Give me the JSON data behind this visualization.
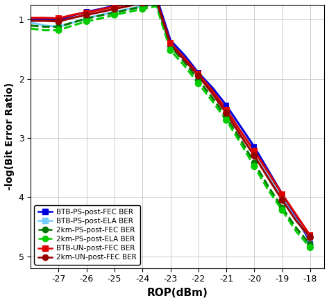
{
  "xlabel": "ROP(dBm)",
  "ylabel": "-log(Bit Error Ratio)",
  "xlim": [
    -28,
    -17.5
  ],
  "ylim": [
    0.75,
    5.2
  ],
  "yticks": [
    1,
    2,
    3,
    4,
    5
  ],
  "xticks": [
    -27,
    -26,
    -25,
    -24,
    -23,
    -22,
    -21,
    -20,
    -19,
    -18
  ],
  "background_color": "#ffffff",
  "grid_color": "#cccccc",
  "curves": {
    "BTB_PS_FEC": {
      "color": "#0000dd",
      "linewidth": 2.2,
      "linestyle": "-",
      "x": [
        -28,
        -27.5,
        -27,
        -26.5,
        -26,
        -25.5,
        -25,
        -24.5,
        -24,
        -23.5,
        -23,
        -22.5,
        -22,
        -21.5,
        -21,
        -20.5,
        -20,
        -19.5,
        -19,
        -18.5,
        -18
      ],
      "y": [
        1.0,
        1.0,
        1.0,
        0.93,
        0.87,
        0.82,
        0.77,
        0.72,
        0.67,
        0.62,
        1.35,
        1.6,
        1.9,
        2.15,
        2.45,
        2.8,
        3.15,
        3.55,
        3.95,
        4.35,
        4.75
      ]
    },
    "BTB_PS_ELA": {
      "color": "#77ccff",
      "linewidth": 2.2,
      "linestyle": "-",
      "x": [
        -28,
        -27.5,
        -27,
        -26.5,
        -26,
        -25.5,
        -25,
        -24.5,
        -24,
        -23.5,
        -23,
        -22.5,
        -22,
        -21.5,
        -21,
        -20.5,
        -20,
        -19.5,
        -19,
        -18.5,
        -18
      ],
      "y": [
        1.05,
        1.1,
        1.12,
        1.05,
        0.98,
        0.92,
        0.87,
        0.82,
        0.77,
        0.73,
        1.45,
        1.68,
        1.95,
        2.22,
        2.52,
        2.88,
        3.22,
        3.62,
        4.02,
        4.38,
        4.7
      ]
    },
    "2km_PS_FEC_line": {
      "color": "#007700",
      "linewidth": 2.2,
      "linestyle": "--",
      "x": [
        -28,
        -27.5,
        -27,
        -26.5,
        -26,
        -25.5,
        -25,
        -24.5,
        -24,
        -23.5,
        -23,
        -22.5,
        -22,
        -21.5,
        -21,
        -20.5,
        -20,
        -19.5,
        -19,
        -18.5,
        -18
      ],
      "y": [
        1.1,
        1.12,
        1.12,
        1.05,
        0.98,
        0.93,
        0.88,
        0.83,
        0.78,
        0.73,
        1.45,
        1.72,
        2.02,
        2.32,
        2.65,
        3.02,
        3.42,
        3.82,
        4.18,
        4.52,
        4.8
      ]
    },
    "2km_PS_ELA_line": {
      "color": "#00cc00",
      "linewidth": 2.2,
      "linestyle": "--",
      "x": [
        -28,
        -27.5,
        -27,
        -26.5,
        -26,
        -25.5,
        -25,
        -24.5,
        -24,
        -23.5,
        -23,
        -22.5,
        -22,
        -21.5,
        -21,
        -20.5,
        -20,
        -19.5,
        -19,
        -18.5,
        -18
      ],
      "y": [
        1.15,
        1.18,
        1.18,
        1.1,
        1.03,
        0.98,
        0.92,
        0.87,
        0.82,
        0.77,
        1.52,
        1.78,
        2.08,
        2.38,
        2.7,
        3.08,
        3.48,
        3.88,
        4.22,
        4.58,
        4.85
      ]
    },
    "BTB_UN_FEC": {
      "color": "#dd0000",
      "linewidth": 2.2,
      "linestyle": "-",
      "x": [
        -28,
        -27.5,
        -27,
        -26.5,
        -26,
        -25.5,
        -25,
        -24.5,
        -24,
        -23.5,
        -23,
        -22.5,
        -22,
        -21.5,
        -21,
        -20.5,
        -20,
        -19.5,
        -19,
        -18.5,
        -18
      ],
      "y": [
        0.97,
        0.97,
        0.98,
        0.92,
        0.88,
        0.83,
        0.78,
        0.73,
        0.7,
        0.67,
        1.4,
        1.65,
        1.92,
        2.2,
        2.52,
        2.88,
        3.22,
        3.58,
        3.95,
        4.3,
        4.65
      ]
    },
    "2km_UN_FEC_line": {
      "color": "#990000",
      "linewidth": 2.2,
      "linestyle": "-",
      "x": [
        -28,
        -27.5,
        -27,
        -26.5,
        -26,
        -25.5,
        -25,
        -24.5,
        -24,
        -23.5,
        -23,
        -22.5,
        -22,
        -21.5,
        -21,
        -20.5,
        -20,
        -19.5,
        -19,
        -18.5,
        -18
      ],
      "y": [
        1.02,
        1.02,
        1.03,
        0.97,
        0.92,
        0.87,
        0.82,
        0.77,
        0.72,
        0.68,
        1.42,
        1.68,
        1.95,
        2.25,
        2.58,
        2.95,
        3.3,
        3.68,
        4.05,
        4.4,
        4.68
      ]
    }
  },
  "scatter": {
    "BTB_PS_FEC_pts": {
      "color": "#0000dd",
      "marker": "s",
      "size": 35,
      "x": [
        -27,
        -26,
        -25,
        -24,
        -22,
        -21,
        -20,
        -19,
        -18
      ],
      "y": [
        1.0,
        0.87,
        0.77,
        0.67,
        1.9,
        2.45,
        3.15,
        3.95,
        4.75
      ]
    },
    "BTB_PS_ELA_pts": {
      "color": "#77ccff",
      "marker": "s",
      "size": 35,
      "x": [
        -27,
        -26,
        -25,
        -24,
        -22,
        -21,
        -20,
        -19,
        -18
      ],
      "y": [
        1.12,
        0.98,
        0.87,
        0.77,
        1.95,
        2.52,
        3.22,
        4.02,
        4.7
      ]
    },
    "2km_PS_FEC_pts": {
      "color": "#007700",
      "marker": "o",
      "size": 45,
      "x": [
        -27,
        -26,
        -25,
        -24,
        -23,
        -22,
        -21,
        -20,
        -19,
        -18
      ],
      "y": [
        1.12,
        0.98,
        0.88,
        0.78,
        1.45,
        2.02,
        2.65,
        3.42,
        4.18,
        4.8
      ]
    },
    "2km_PS_ELA_pts": {
      "color": "#00cc00",
      "marker": "o",
      "size": 55,
      "x": [
        -27,
        -26,
        -25,
        -24,
        -23,
        -22,
        -21,
        -20,
        -19,
        -18
      ],
      "y": [
        1.18,
        1.03,
        0.92,
        0.82,
        1.52,
        2.08,
        2.7,
        3.48,
        4.22,
        4.85
      ]
    },
    "BTB_UN_FEC_pts": {
      "color": "#dd0000",
      "marker": "s",
      "size": 40,
      "x": [
        -27,
        -26,
        -25,
        -24,
        -23,
        -22,
        -21,
        -20,
        -19,
        -18
      ],
      "y": [
        0.98,
        0.88,
        0.78,
        0.7,
        1.4,
        1.92,
        2.52,
        3.22,
        3.95,
        4.65
      ]
    },
    "2km_UN_FEC_pts": {
      "color": "#990000",
      "marker": "o",
      "size": 55,
      "x": [
        -27,
        -26,
        -25,
        -24,
        -22,
        -21,
        -20,
        -19,
        -18
      ],
      "y": [
        1.03,
        0.92,
        0.82,
        0.72,
        1.95,
        2.58,
        3.3,
        4.05,
        4.68
      ]
    }
  },
  "legend": {
    "BTB_PS_FEC": {
      "label": "BTB-PS-post-FEC BER",
      "color": "#0000dd",
      "marker": "s",
      "linestyle": "-"
    },
    "BTB_PS_ELA": {
      "label": "BTB-PS-post-ELA BER",
      "color": "#77ccff",
      "marker": "s",
      "linestyle": "-"
    },
    "2km_PS_FEC": {
      "label": "2km-PS-post-FEC BER",
      "color": "#007700",
      "marker": "o",
      "linestyle": "--"
    },
    "2km_PS_ELA": {
      "label": "2km-PS-post-ELA BER",
      "color": "#00cc00",
      "marker": "o",
      "linestyle": "--"
    },
    "BTB_UN_FEC": {
      "label": "BTB-UN-post-FEC BER",
      "color": "#dd0000",
      "marker": "s",
      "linestyle": "-"
    },
    "2km_UN_FEC": {
      "label": "2km-UN-post-FEC BER",
      "color": "#990000",
      "marker": "o",
      "linestyle": "-"
    }
  }
}
